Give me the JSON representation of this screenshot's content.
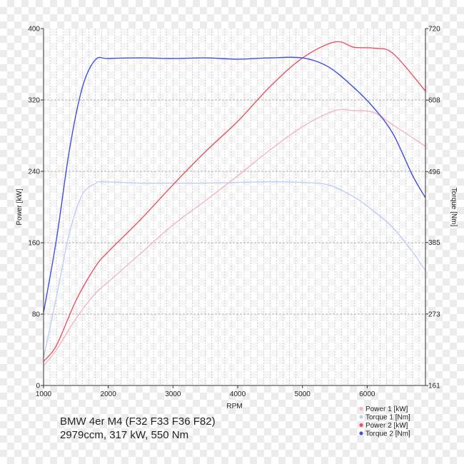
{
  "chart_data": {
    "type": "line",
    "title": "BMW 4er M4 (F32 F33 F36 F82)",
    "subtitle": "2979ccm, 317 kW, 550 Nm",
    "xlabel": "RPM",
    "ylabel": "Power [kW]",
    "y2label": "Torque [Nm]",
    "xlim": [
      1000,
      6900
    ],
    "ylim": [
      0,
      400
    ],
    "y2lim": [
      161,
      720
    ],
    "x_ticks": [
      1000,
      2000,
      3000,
      4000,
      5000,
      6000
    ],
    "y_ticks": [
      0,
      80,
      160,
      240,
      320,
      400
    ],
    "y2_ticks": [
      161,
      273,
      385,
      496,
      608,
      720
    ],
    "grid": true,
    "legend_position": "bottom-right",
    "series": [
      {
        "name": "Power 1 [kW]",
        "axis": "left",
        "color": "#f4b6c0",
        "points": [
          [
            1000,
            22
          ],
          [
            1200,
            40
          ],
          [
            1500,
            75
          ],
          [
            1800,
            103
          ],
          [
            2000,
            116
          ],
          [
            2500,
            148
          ],
          [
            3000,
            180
          ],
          [
            3500,
            207
          ],
          [
            4000,
            235
          ],
          [
            4500,
            264
          ],
          [
            5000,
            290
          ],
          [
            5500,
            308
          ],
          [
            5800,
            308
          ],
          [
            6100,
            306
          ],
          [
            6400,
            292
          ],
          [
            6900,
            268
          ]
        ]
      },
      {
        "name": "Torque 1 [Nm]",
        "axis": "right",
        "color": "#c0cef4",
        "points": [
          [
            1000,
            204
          ],
          [
            1200,
            300
          ],
          [
            1400,
            400
          ],
          [
            1600,
            460
          ],
          [
            1800,
            477
          ],
          [
            1900,
            480
          ],
          [
            2500,
            478
          ],
          [
            3000,
            478
          ],
          [
            3500,
            478
          ],
          [
            4000,
            479
          ],
          [
            4500,
            480
          ],
          [
            5000,
            479
          ],
          [
            5400,
            475
          ],
          [
            5800,
            456
          ],
          [
            6100,
            434
          ],
          [
            6400,
            408
          ],
          [
            6700,
            370
          ],
          [
            6900,
            341
          ]
        ]
      },
      {
        "name": "Power 2 [kW]",
        "axis": "left",
        "color": "#e85565",
        "points": [
          [
            1000,
            27
          ],
          [
            1200,
            45
          ],
          [
            1500,
            95
          ],
          [
            1800,
            133
          ],
          [
            2000,
            150
          ],
          [
            2500,
            186
          ],
          [
            3000,
            225
          ],
          [
            3500,
            262
          ],
          [
            4000,
            296
          ],
          [
            4500,
            335
          ],
          [
            5000,
            367
          ],
          [
            5500,
            385
          ],
          [
            5800,
            379
          ],
          [
            6100,
            378
          ],
          [
            6400,
            372
          ],
          [
            6900,
            330
          ]
        ]
      },
      {
        "name": "Torque 2 [Nm]",
        "axis": "right",
        "color": "#3f4fe0",
        "points": [
          [
            1000,
            275
          ],
          [
            1200,
            390
          ],
          [
            1400,
            530
          ],
          [
            1600,
            628
          ],
          [
            1800,
            671
          ],
          [
            2000,
            673
          ],
          [
            2500,
            674
          ],
          [
            3000,
            673
          ],
          [
            3500,
            674
          ],
          [
            4000,
            672
          ],
          [
            4500,
            674
          ],
          [
            5000,
            674
          ],
          [
            5400,
            660
          ],
          [
            5800,
            627
          ],
          [
            6100,
            596
          ],
          [
            6400,
            555
          ],
          [
            6700,
            490
          ],
          [
            6900,
            455
          ]
        ]
      }
    ]
  }
}
